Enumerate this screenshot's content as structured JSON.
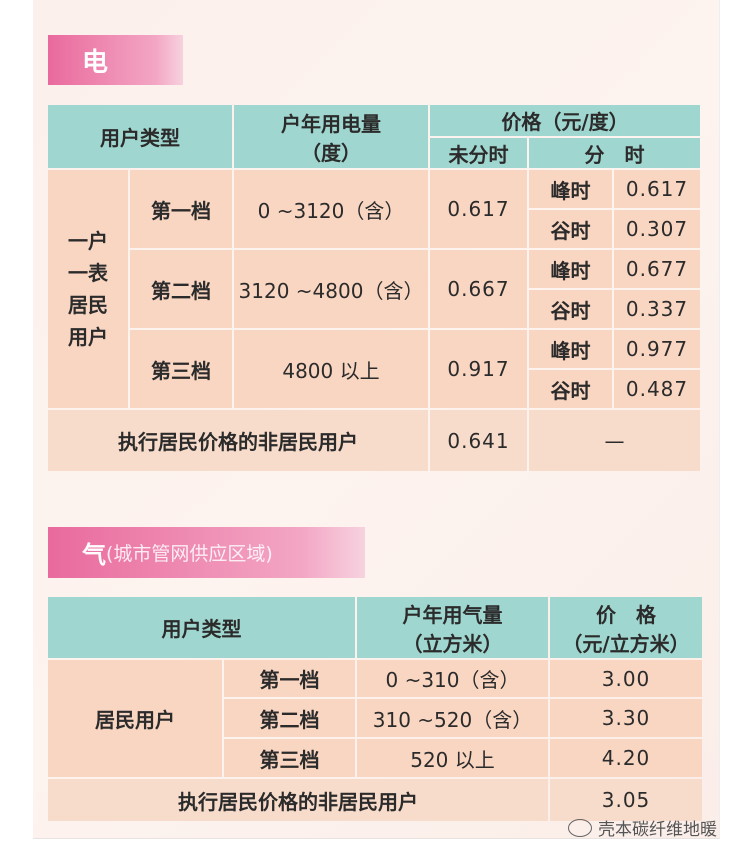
{
  "electricity": {
    "section_label": "电",
    "headers": {
      "user_type": "用户类型",
      "annual_usage": "户年用电量",
      "annual_usage_unit": "（度）",
      "price": "价格（元/度）",
      "no_tou": "未分时",
      "tou": "分　时"
    },
    "group_label": "一户一表居民用户",
    "tiers": [
      {
        "tier": "第一档",
        "range": "0 ~3120（含）",
        "flat": "0.617",
        "peak_label": "峰时",
        "peak": "0.617",
        "valley_label": "谷时",
        "valley": "0.307"
      },
      {
        "tier": "第二档",
        "range": "3120 ~4800（含）",
        "flat": "0.667",
        "peak_label": "峰时",
        "peak": "0.677",
        "valley_label": "谷时",
        "valley": "0.337"
      },
      {
        "tier": "第三档",
        "range": "4800 以上",
        "flat": "0.917",
        "peak_label": "峰时",
        "peak": "0.977",
        "valley_label": "谷时",
        "valley": "0.487"
      }
    ],
    "non_resident": {
      "label": "执行居民价格的非居民用户",
      "flat": "0.641",
      "tou": "—"
    }
  },
  "gas": {
    "section_label": "气",
    "section_sub": "(城市管网供应区域)",
    "headers": {
      "user_type": "用户类型",
      "annual_usage": "户年用气量",
      "annual_usage_unit": "（立方米）",
      "price": "价　格",
      "price_unit": "（元/立方米）"
    },
    "group_label": "居民用户",
    "tiers": [
      {
        "tier": "第一档",
        "range": "0 ~310（含）",
        "price": "3.00"
      },
      {
        "tier": "第二档",
        "range": "310 ~520（含）",
        "price": "3.30"
      },
      {
        "tier": "第三档",
        "range": "520 以上",
        "price": "4.20"
      }
    ],
    "non_resident": {
      "label": "执行居民价格的非居民用户",
      "price": "3.05"
    }
  },
  "watermark": "壳本碳纤维地暖",
  "colors": {
    "header": "#9fd6cf",
    "body": "#f9d6c2",
    "section_label": "#e96a9d"
  }
}
